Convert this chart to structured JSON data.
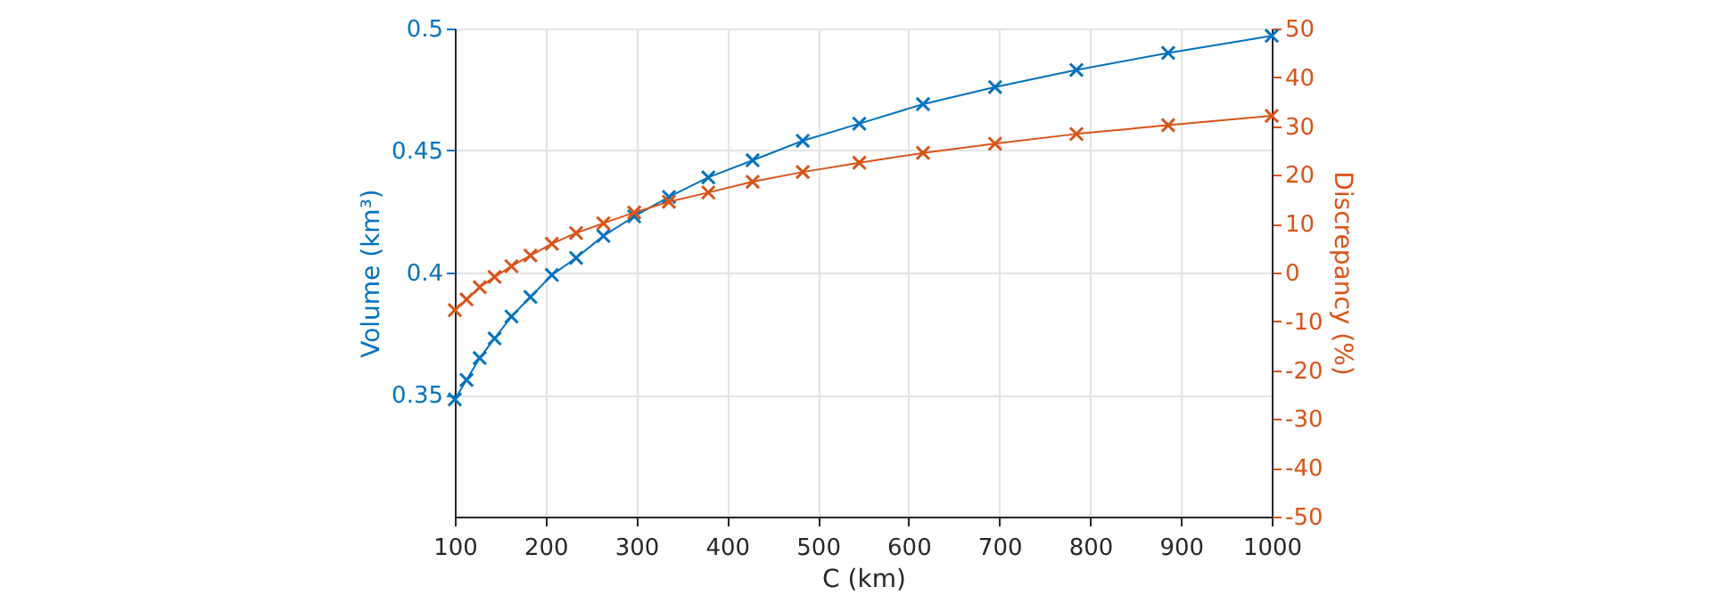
{
  "chart_data": {
    "type": "line",
    "xlabel": "C (km)",
    "ylabel": "Volume (km³)",
    "y2label": "Discrepancy (%)",
    "x": [
      100,
      112.9,
      127.4,
      143.8,
      162.4,
      183.3,
      206.9,
      233.6,
      263.7,
      297.6,
      335.9,
      379.3,
      428.1,
      483.3,
      545.6,
      615.8,
      695.2,
      784.8,
      885.9,
      1000
    ],
    "series": [
      {
        "color": "#0072bd",
        "values": [
          0.348,
          0.356,
          0.365,
          0.373,
          0.382,
          0.39,
          0.399,
          0.406,
          0.415,
          0.423,
          0.431,
          0.439,
          0.446,
          0.454,
          0.461,
          0.469,
          0.476,
          0.483,
          0.49,
          0.497
        ]
      },
      {
        "color": "#d95319",
        "axis": "y2",
        "values": [
          -7.7,
          -5.5,
          -3.0,
          -0.9,
          1.3,
          3.5,
          5.9,
          8.1,
          10.1,
          12.3,
          14.5,
          16.4,
          18.6,
          20.6,
          22.5,
          24.5,
          26.4,
          28.4,
          30.2,
          32.1
        ]
      }
    ],
    "xlim": [
      100,
      1000
    ],
    "xticks": [
      100,
      200,
      300,
      400,
      500,
      600,
      700,
      800,
      900,
      1000
    ],
    "ylim": [
      0.3,
      0.5
    ],
    "yticks": [
      0.35,
      0.4,
      0.45,
      0.5
    ],
    "y2lim": [
      -50,
      50
    ],
    "y2ticks": [
      -50,
      -40,
      -30,
      -20,
      -10,
      0,
      10,
      20,
      30,
      40,
      50
    ],
    "grid": true,
    "marker": "cross",
    "line_style": "solid"
  }
}
